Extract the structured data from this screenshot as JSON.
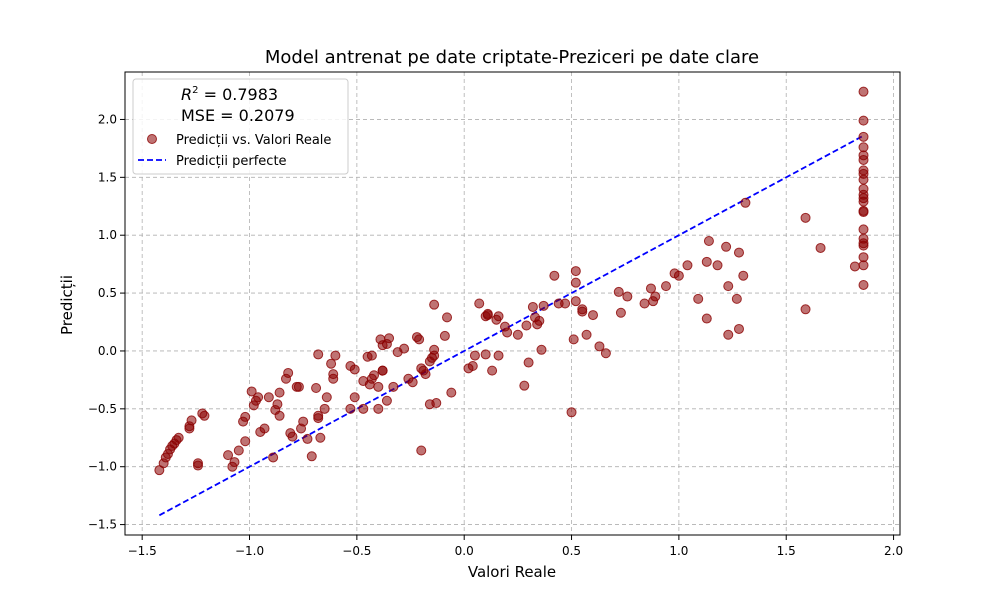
{
  "chart_data": {
    "type": "scatter",
    "title": "Model antrenat pe date criptate-Preziceri pe date clare",
    "xlabel": "Valori Reale",
    "ylabel": "Predicții",
    "xlim": [
      -1.58,
      2.03
    ],
    "ylim": [
      -1.59,
      2.41
    ],
    "xticks": [
      -1.5,
      -1.0,
      -0.5,
      0.0,
      0.5,
      1.0,
      1.5,
      2.0
    ],
    "xtick_labels": [
      "−1.5",
      "−1.0",
      "−0.5",
      "0.0",
      "0.5",
      "1.0",
      "1.5",
      "2.0"
    ],
    "yticks": [
      -1.5,
      -1.0,
      -0.5,
      0.0,
      0.5,
      1.0,
      1.5,
      2.0
    ],
    "ytick_labels": [
      "−1.5",
      "−1.0",
      "−0.5",
      "0.0",
      "0.5",
      "1.0",
      "1.5",
      "2.0"
    ],
    "grid": true,
    "legend_position": "top-left",
    "stats": {
      "r2_symbol": "R",
      "r2_exponent": "2",
      "r2_value": " = 0.7983",
      "mse": "MSE = 0.2079"
    },
    "series": [
      {
        "name": "Predicții vs. Valori Reale",
        "kind": "scatter",
        "color": "#8b0000",
        "points": [
          [
            -1.42,
            -1.03
          ],
          [
            -1.4,
            -0.97
          ],
          [
            -1.39,
            -0.92
          ],
          [
            -1.38,
            -0.89
          ],
          [
            -1.37,
            -0.85
          ],
          [
            -1.36,
            -0.82
          ],
          [
            -1.35,
            -0.8
          ],
          [
            -1.34,
            -0.77
          ],
          [
            -1.33,
            -0.75
          ],
          [
            -1.28,
            -0.67
          ],
          [
            -1.28,
            -0.65
          ],
          [
            -1.27,
            -0.6
          ],
          [
            -1.24,
            -0.97
          ],
          [
            -1.24,
            -0.99
          ],
          [
            -1.22,
            -0.54
          ],
          [
            -1.21,
            -0.56
          ],
          [
            -1.1,
            -0.9
          ],
          [
            -1.08,
            -1.0
          ],
          [
            -1.07,
            -0.96
          ],
          [
            -1.05,
            -0.86
          ],
          [
            -1.03,
            -0.61
          ],
          [
            -1.02,
            -0.57
          ],
          [
            -1.02,
            -0.78
          ],
          [
            -0.99,
            -0.35
          ],
          [
            -0.98,
            -0.47
          ],
          [
            -0.97,
            -0.43
          ],
          [
            -0.96,
            -0.4
          ],
          [
            -0.95,
            -0.7
          ],
          [
            -0.93,
            -0.67
          ],
          [
            -0.91,
            -0.4
          ],
          [
            -0.89,
            -0.92
          ],
          [
            -0.88,
            -0.51
          ],
          [
            -0.87,
            -0.46
          ],
          [
            -0.86,
            -0.56
          ],
          [
            -0.86,
            -0.36
          ],
          [
            -0.83,
            -0.24
          ],
          [
            -0.82,
            -0.19
          ],
          [
            -0.81,
            -0.71
          ],
          [
            -0.8,
            -0.74
          ],
          [
            -0.78,
            -0.31
          ],
          [
            -0.77,
            -0.31
          ],
          [
            -0.76,
            -0.67
          ],
          [
            -0.75,
            -0.61
          ],
          [
            -0.73,
            -0.76
          ],
          [
            -0.71,
            -0.91
          ],
          [
            -0.69,
            -0.32
          ],
          [
            -0.68,
            -0.56
          ],
          [
            -0.68,
            -0.03
          ],
          [
            -0.68,
            -0.58
          ],
          [
            -0.67,
            -0.75
          ],
          [
            -0.65,
            -0.5
          ],
          [
            -0.64,
            -0.4
          ],
          [
            -0.62,
            -0.11
          ],
          [
            -0.61,
            -0.2
          ],
          [
            -0.61,
            -0.24
          ],
          [
            -0.6,
            -0.04
          ],
          [
            -0.53,
            -0.13
          ],
          [
            -0.53,
            -0.5
          ],
          [
            -0.51,
            -0.16
          ],
          [
            -0.51,
            -0.4
          ],
          [
            -0.47,
            -0.26
          ],
          [
            -0.47,
            -0.5
          ],
          [
            -0.45,
            -0.05
          ],
          [
            -0.44,
            -0.29
          ],
          [
            -0.43,
            -0.04
          ],
          [
            -0.43,
            -0.24
          ],
          [
            -0.42,
            -0.21
          ],
          [
            -0.4,
            -0.31
          ],
          [
            -0.4,
            -0.5
          ],
          [
            -0.39,
            0.1
          ],
          [
            -0.38,
            0.05
          ],
          [
            -0.38,
            -0.17
          ],
          [
            -0.38,
            -0.17
          ],
          [
            -0.36,
            0.06
          ],
          [
            -0.36,
            -0.43
          ],
          [
            -0.35,
            0.11
          ],
          [
            -0.33,
            -0.31
          ],
          [
            -0.31,
            -0.01
          ],
          [
            -0.28,
            0.02
          ],
          [
            -0.26,
            -0.24
          ],
          [
            -0.24,
            -0.27
          ],
          [
            -0.22,
            0.12
          ],
          [
            -0.21,
            0.1
          ],
          [
            -0.2,
            -0.15
          ],
          [
            -0.2,
            -0.86
          ],
          [
            -0.19,
            -0.17
          ],
          [
            -0.18,
            -0.2
          ],
          [
            -0.16,
            -0.09
          ],
          [
            -0.16,
            -0.46
          ],
          [
            -0.15,
            -0.06
          ],
          [
            -0.14,
            0.4
          ],
          [
            -0.14,
            -0.04
          ],
          [
            -0.13,
            -0.45
          ],
          [
            -0.14,
            0.01
          ],
          [
            -0.09,
            0.13
          ],
          [
            -0.08,
            0.29
          ],
          [
            -0.06,
            -0.36
          ],
          [
            0.02,
            -0.15
          ],
          [
            0.04,
            -0.13
          ],
          [
            0.05,
            -0.04
          ],
          [
            0.07,
            0.41
          ],
          [
            0.1,
            -0.03
          ],
          [
            0.1,
            0.3
          ],
          [
            0.11,
            0.32
          ],
          [
            0.11,
            0.31
          ],
          [
            0.13,
            -0.17
          ],
          [
            0.15,
            0.27
          ],
          [
            0.16,
            0.3
          ],
          [
            0.16,
            -0.04
          ],
          [
            0.19,
            0.21
          ],
          [
            0.2,
            0.16
          ],
          [
            0.25,
            0.14
          ],
          [
            0.28,
            -0.3
          ],
          [
            0.29,
            0.22
          ],
          [
            0.3,
            -0.1
          ],
          [
            0.32,
            0.38
          ],
          [
            0.33,
            0.29
          ],
          [
            0.34,
            0.23
          ],
          [
            0.35,
            0.26
          ],
          [
            0.36,
            0.01
          ],
          [
            0.37,
            0.39
          ],
          [
            0.42,
            0.65
          ],
          [
            0.44,
            0.41
          ],
          [
            0.47,
            0.41
          ],
          [
            0.5,
            -0.53
          ],
          [
            0.51,
            0.1
          ],
          [
            0.52,
            0.43
          ],
          [
            0.52,
            0.69
          ],
          [
            0.52,
            0.59
          ],
          [
            0.55,
            0.36
          ],
          [
            0.55,
            0.34
          ],
          [
            0.57,
            0.14
          ],
          [
            0.6,
            0.31
          ],
          [
            0.63,
            0.04
          ],
          [
            0.66,
            -0.02
          ],
          [
            0.72,
            0.51
          ],
          [
            0.73,
            0.33
          ],
          [
            0.76,
            0.47
          ],
          [
            0.84,
            0.41
          ],
          [
            0.87,
            0.54
          ],
          [
            0.88,
            0.43
          ],
          [
            0.89,
            0.47
          ],
          [
            0.94,
            0.56
          ],
          [
            0.98,
            0.67
          ],
          [
            1.0,
            0.65
          ],
          [
            1.04,
            0.74
          ],
          [
            1.09,
            0.45
          ],
          [
            1.13,
            0.28
          ],
          [
            1.13,
            0.77
          ],
          [
            1.14,
            0.95
          ],
          [
            1.18,
            0.74
          ],
          [
            1.22,
            0.9
          ],
          [
            1.23,
            0.14
          ],
          [
            1.23,
            0.56
          ],
          [
            1.27,
            0.45
          ],
          [
            1.28,
            0.85
          ],
          [
            1.28,
            0.19
          ],
          [
            1.3,
            0.65
          ],
          [
            1.31,
            1.28
          ],
          [
            1.59,
            0.36
          ],
          [
            1.59,
            1.15
          ],
          [
            1.66,
            0.89
          ],
          [
            1.82,
            0.73
          ],
          [
            1.86,
            2.24
          ],
          [
            1.86,
            1.99
          ],
          [
            1.86,
            1.85
          ],
          [
            1.86,
            1.76
          ],
          [
            1.86,
            1.69
          ],
          [
            1.86,
            1.65
          ],
          [
            1.86,
            1.56
          ],
          [
            1.86,
            1.53
          ],
          [
            1.86,
            1.48
          ],
          [
            1.86,
            1.4
          ],
          [
            1.86,
            1.35
          ],
          [
            1.86,
            1.32
          ],
          [
            1.86,
            1.29
          ],
          [
            1.86,
            1.21
          ],
          [
            1.86,
            1.2
          ],
          [
            1.86,
            1.05
          ],
          [
            1.86,
            0.97
          ],
          [
            1.86,
            0.93
          ],
          [
            1.86,
            0.91
          ],
          [
            1.86,
            0.81
          ],
          [
            1.86,
            0.74
          ],
          [
            1.86,
            0.57
          ]
        ]
      },
      {
        "name": "Predicții perfecte",
        "kind": "line",
        "color": "#0000ff",
        "style": "dashed",
        "x": [
          -1.42,
          1.86
        ],
        "y": [
          -1.42,
          1.86
        ]
      }
    ]
  }
}
